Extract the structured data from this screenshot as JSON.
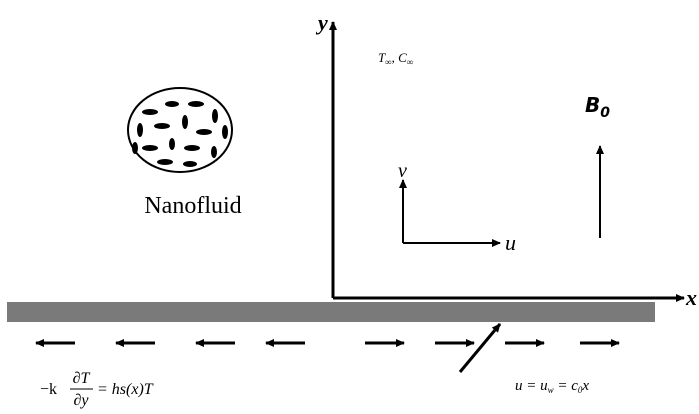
{
  "axes": {
    "y": "y",
    "x": "x"
  },
  "ambient": {
    "T": "T",
    "T_sub": "∞",
    "sep": ", ",
    "C": "C",
    "C_sub": "∞"
  },
  "field": {
    "B": "B",
    "B_sub": "0"
  },
  "nanofluid": "Nanofluid",
  "velocity": {
    "v": "v",
    "u": "u"
  },
  "thermal_bc": {
    "prefix": "−k",
    "numerator": "∂T",
    "denominator": "∂y",
    "suffix": "= hs(x)T"
  },
  "wall_bc": {
    "a": "u = u",
    "a_sub": "w",
    "b": " = c",
    "b_sub": "0",
    "c": "x"
  }
}
